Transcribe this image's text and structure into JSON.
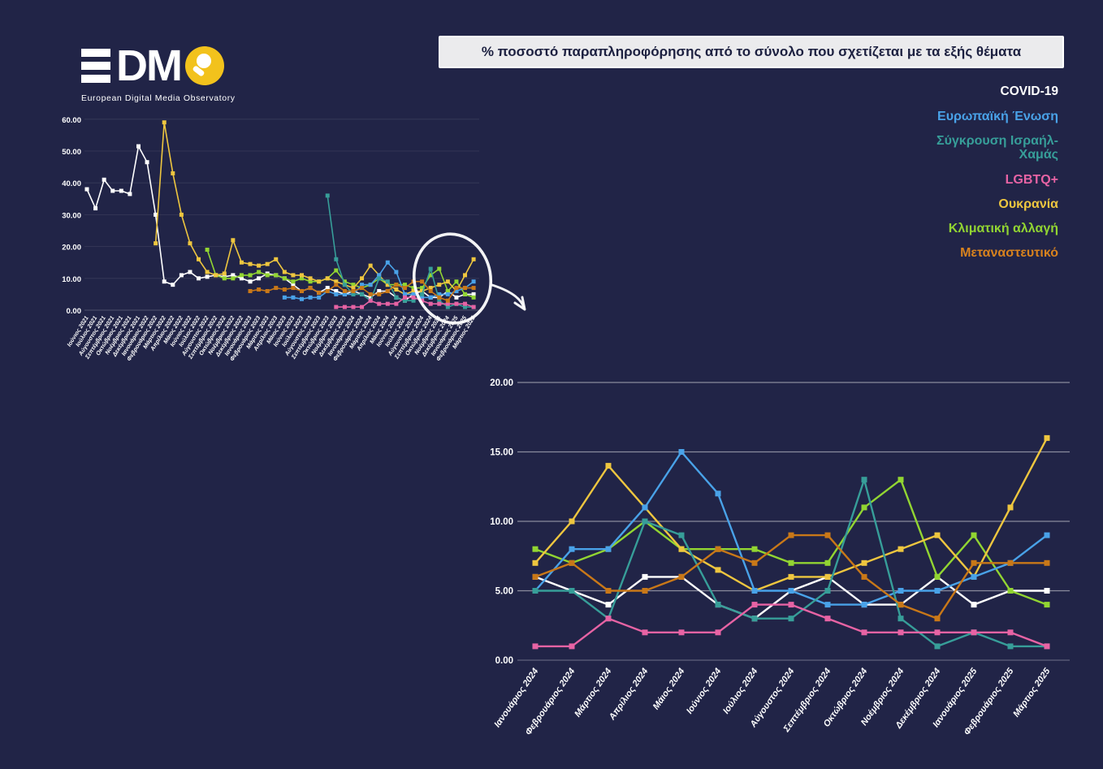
{
  "page": {
    "background": "#212447"
  },
  "logo": {
    "brand_letters": "DM",
    "subtitle": "European Digital Media Observatory",
    "accent_color": "#f2c21c"
  },
  "title_banner": {
    "text": "% ποσοστό παραπληροφόρησης από το σύνολο που σχετίζεται με τα εξής θέματα"
  },
  "legend": {
    "items": [
      {
        "label": "COVID-19",
        "color": "#ffffff"
      },
      {
        "label": "Ευρωπαϊκή Ένωση",
        "color": "#49a2e8"
      },
      {
        "label": "Σύγκρουση Ισραήλ-Χαμάς",
        "color": "#379e99"
      },
      {
        "label": "LGBTQ+",
        "color": "#e763a4"
      },
      {
        "label": "Ουκρανία",
        "color": "#eec63f"
      },
      {
        "label": "Κλιματική αλλαγή",
        "color": "#92d532"
      },
      {
        "label": "Μεταναστευτικό",
        "color": "#d8821e"
      }
    ]
  },
  "chart_data": [
    {
      "id": "overview",
      "type": "line",
      "title": "",
      "xlabel": "",
      "ylabel": "",
      "ylim": [
        0,
        60
      ],
      "yticks": [
        0,
        10,
        20,
        30,
        40,
        50,
        60
      ],
      "ytick_labels": [
        "0.00",
        "10.00",
        "20.00",
        "30.00",
        "40.00",
        "50.00",
        "60.00"
      ],
      "grid": true,
      "legend_position": "none",
      "categories": [
        "Ιούνιος 2021",
        "Ιούλιος 2021",
        "Αύγουστος 2021",
        "Σεπτέμβριος 2021",
        "Οκτώβριος 2021",
        "Νοέμβριος 2021",
        "Δεκέμβριος 2021",
        "Ιανουάριος 2022",
        "Φεβρουάριος 2022",
        "Μάρτιος 2022",
        "Απρίλιος 2022",
        "Μάιος 2022",
        "Ιούνιος 2022",
        "Ιούλιος 2022",
        "Αύγουστος 2022",
        "Σεπτέμβριος 2022",
        "Οκτώβριος 2022",
        "Νοέμβριος 2022",
        "Δεκέμβριος 2022",
        "Ιανουάριος 2023",
        "Φεβρουάριος 2023",
        "Μάρτιος 2023",
        "Απρίλιος 2023",
        "Μάιος 2023",
        "Ιούνιος 2023",
        "Ιούλιος 2023",
        "Αύγουστος 2023",
        "Σεπτέμβριος 2023",
        "Οκτώβριος 2023",
        "Νοέμβριος 2023",
        "Δεκέμβριος 2023",
        "Ιανουάριος 2024",
        "Φεβρουάριος 2024",
        "Μάρτιος 2024",
        "Απρίλιος 2024",
        "Μάιος 2024",
        "Ιούνιος 2024",
        "Ιούλιος 2024",
        "Αύγουστος 2024",
        "Σεπτέμβριος 2024",
        "Οκτώβριος 2024",
        "Νοέμβριος 2024",
        "Δεκέμβριος 2024",
        "Ιανουάριος 2025",
        "Φεβρουάριος 2025",
        "Μάρτιος 2025"
      ],
      "series": [
        {
          "name": "COVID-19",
          "color": "#ffffff",
          "values": [
            38,
            32,
            41,
            37.5,
            37.5,
            36.5,
            51.5,
            46.5,
            30,
            9,
            8,
            11,
            12,
            10,
            10.5,
            11,
            10.5,
            11,
            10,
            9,
            10,
            11.5,
            11,
            10,
            8,
            6,
            7,
            5.5,
            7,
            6,
            5,
            6,
            5,
            4,
            6,
            6,
            4,
            3,
            5,
            6,
            4,
            4,
            6,
            4,
            5,
            5
          ]
        },
        {
          "name": "Κλιματική αλλαγή",
          "color": "#92d532",
          "values": [
            null,
            null,
            null,
            null,
            null,
            null,
            null,
            null,
            null,
            null,
            null,
            null,
            null,
            null,
            19,
            11,
            10,
            10,
            11,
            11,
            12,
            11,
            11,
            10,
            9,
            10,
            9,
            9,
            10,
            12.5,
            9,
            8,
            7,
            8,
            10,
            8,
            8,
            8,
            7,
            7,
            11,
            13,
            6,
            9,
            5,
            4
          ]
        },
        {
          "name": "Ουκρανία",
          "color": "#eec63f",
          "values": [
            null,
            null,
            null,
            null,
            null,
            null,
            null,
            null,
            21,
            59,
            43,
            30,
            21,
            16,
            12,
            11,
            11.5,
            22,
            15,
            14.5,
            14,
            14.5,
            16,
            12,
            11,
            11,
            10,
            9,
            10,
            9,
            8,
            7,
            10,
            14,
            11,
            8,
            6.5,
            5,
            6,
            6,
            7,
            8,
            9,
            6,
            11,
            16
          ]
        },
        {
          "name": "Ευρωπαϊκή Ένωση",
          "color": "#49a2e8",
          "values": [
            null,
            null,
            null,
            null,
            null,
            null,
            null,
            null,
            null,
            null,
            null,
            null,
            null,
            null,
            null,
            null,
            null,
            null,
            null,
            null,
            null,
            null,
            null,
            4,
            4,
            3.5,
            4,
            4,
            6,
            5,
            5,
            5,
            8,
            8,
            11,
            15,
            12,
            5,
            5,
            4,
            4,
            5,
            5,
            6,
            7,
            9
          ]
        },
        {
          "name": "Σύγκρουση Ισραήλ-Χαμάς",
          "color": "#379e99",
          "values": [
            null,
            null,
            null,
            null,
            null,
            null,
            null,
            null,
            null,
            null,
            null,
            null,
            null,
            null,
            null,
            null,
            null,
            null,
            null,
            null,
            null,
            null,
            null,
            null,
            null,
            null,
            null,
            null,
            36,
            16,
            8,
            5,
            5,
            3,
            10,
            9,
            4,
            3,
            3,
            5,
            13,
            3,
            1,
            2,
            1,
            1
          ]
        },
        {
          "name": "LGBTQ+",
          "color": "#e763a4",
          "values": [
            null,
            null,
            null,
            null,
            null,
            null,
            null,
            null,
            null,
            null,
            null,
            null,
            null,
            null,
            null,
            null,
            null,
            null,
            null,
            null,
            null,
            null,
            null,
            null,
            null,
            null,
            null,
            null,
            null,
            1,
            1,
            1,
            1,
            3,
            2,
            2,
            2,
            4,
            4,
            3,
            2,
            2,
            2,
            2,
            2,
            1
          ]
        },
        {
          "name": "Μεταναστευτικό",
          "color": "#c97818",
          "values": [
            null,
            null,
            null,
            null,
            null,
            null,
            null,
            null,
            null,
            null,
            null,
            null,
            null,
            null,
            null,
            null,
            null,
            null,
            null,
            6,
            6.5,
            6,
            7,
            6.5,
            7,
            6,
            7,
            5.5,
            6,
            8,
            6,
            6,
            7,
            5,
            5,
            6,
            8,
            7,
            9,
            9,
            6,
            4,
            3,
            7,
            7,
            7
          ]
        }
      ]
    },
    {
      "id": "zoomed",
      "type": "line",
      "title": "",
      "xlabel": "",
      "ylabel": "",
      "ylim": [
        0,
        20
      ],
      "yticks": [
        0,
        5,
        10,
        15,
        20
      ],
      "ytick_labels": [
        "0.00",
        "5.00",
        "10.00",
        "15.00",
        "20.00"
      ],
      "grid": true,
      "legend_position": "none",
      "categories": [
        "Ιανουάριος 2024",
        "Φεβρουάριος 2024",
        "Μάρτιος 2024",
        "Απρίλιος 2024",
        "Μάιος 2024",
        "Ιούνιος 2024",
        "Ιούλιος 2024",
        "Αύγουστος 2024",
        "Σεπτέμβριος 2024",
        "Οκτώβριος 2024",
        "Νοέμβριος 2024",
        "Δεκέμβριος 2024",
        "Ιανουάριος 2025",
        "Φεβρουάριος 2025",
        "Μάρτιος 2025"
      ],
      "series": [
        {
          "name": "COVID-19",
          "color": "#ffffff",
          "values": [
            6,
            5,
            4,
            6,
            6,
            4,
            3,
            5,
            6,
            4,
            4,
            6,
            4,
            5,
            5
          ]
        },
        {
          "name": "Κλιματική αλλαγή",
          "color": "#92d532",
          "values": [
            8,
            7,
            8,
            10,
            8,
            8,
            8,
            7,
            7,
            11,
            13,
            6,
            9,
            5,
            4
          ]
        },
        {
          "name": "Ουκρανία",
          "color": "#eec63f",
          "values": [
            7,
            10,
            14,
            11,
            8,
            6.5,
            5,
            6,
            6,
            7,
            8,
            9,
            6,
            11,
            16
          ]
        },
        {
          "name": "Ευρωπαϊκή Ένωση",
          "color": "#49a2e8",
          "values": [
            5,
            8,
            8,
            11,
            15,
            12,
            5,
            5,
            4,
            4,
            5,
            5,
            6,
            7,
            9
          ]
        },
        {
          "name": "Σύγκρουση Ισραήλ-Χαμάς",
          "color": "#379e99",
          "values": [
            5,
            5,
            3,
            10,
            9,
            4,
            3,
            3,
            5,
            13,
            3,
            1,
            2,
            1,
            1
          ]
        },
        {
          "name": "LGBTQ+",
          "color": "#e763a4",
          "values": [
            1,
            1,
            3,
            2,
            2,
            2,
            4,
            4,
            3,
            2,
            2,
            2,
            2,
            2,
            1
          ]
        },
        {
          "name": "Μεταναστευτικό",
          "color": "#c97818",
          "values": [
            6,
            7,
            5,
            5,
            6,
            8,
            7,
            9,
            9,
            6,
            4,
            3,
            7,
            7,
            7
          ]
        }
      ]
    }
  ]
}
